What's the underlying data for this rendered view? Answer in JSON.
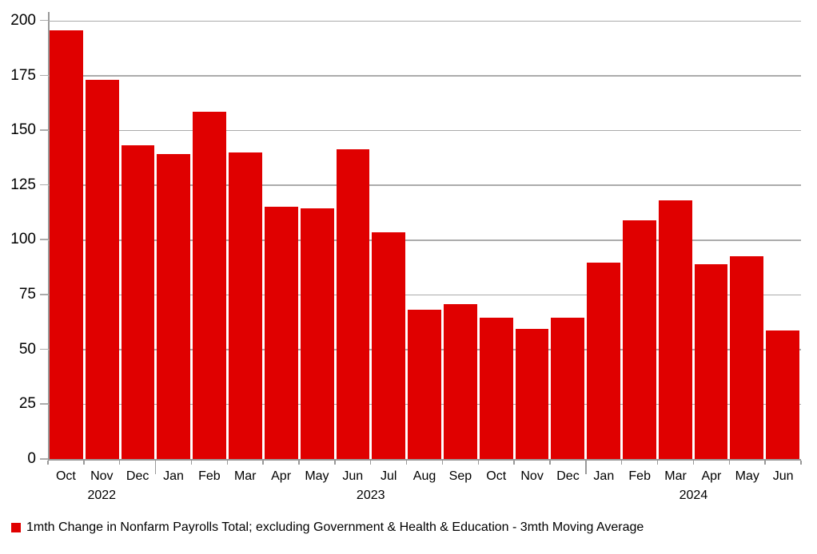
{
  "chart_data": {
    "type": "bar",
    "title": "",
    "legend_label": "1mth Change in Nonfarm Payrolls Total; excluding Government & Health & Education - 3mth Moving Average",
    "months": [
      "Oct",
      "Nov",
      "Dec",
      "Jan",
      "Feb",
      "Mar",
      "Apr",
      "May",
      "Jun",
      "Jul",
      "Aug",
      "Sep",
      "Oct",
      "Nov",
      "Dec",
      "Jan",
      "Feb",
      "Mar",
      "Apr",
      "May",
      "Jun"
    ],
    "year_groups": [
      {
        "label": "2022",
        "count": 3
      },
      {
        "label": "2023",
        "count": 12
      },
      {
        "label": "2024",
        "count": 6
      }
    ],
    "values": [
      195.5,
      173,
      143,
      139,
      158.5,
      140,
      115,
      114.5,
      141.5,
      103.5,
      68,
      70.5,
      64.5,
      59.5,
      64.5,
      89.5,
      109,
      118,
      89,
      92.5,
      58.5
    ],
    "y_ticks": [
      0,
      25,
      50,
      75,
      100,
      125,
      150,
      175,
      200
    ],
    "ylim": [
      0,
      204
    ],
    "xlabel": "",
    "ylabel": "",
    "grid": true,
    "legend_position": "bottom-left",
    "year_tick_boundaries": [
      3,
      15
    ],
    "bar_color": "#e00000",
    "grid_color": "#ababab",
    "axis_color": "#999999",
    "text_color": "#000000"
  }
}
